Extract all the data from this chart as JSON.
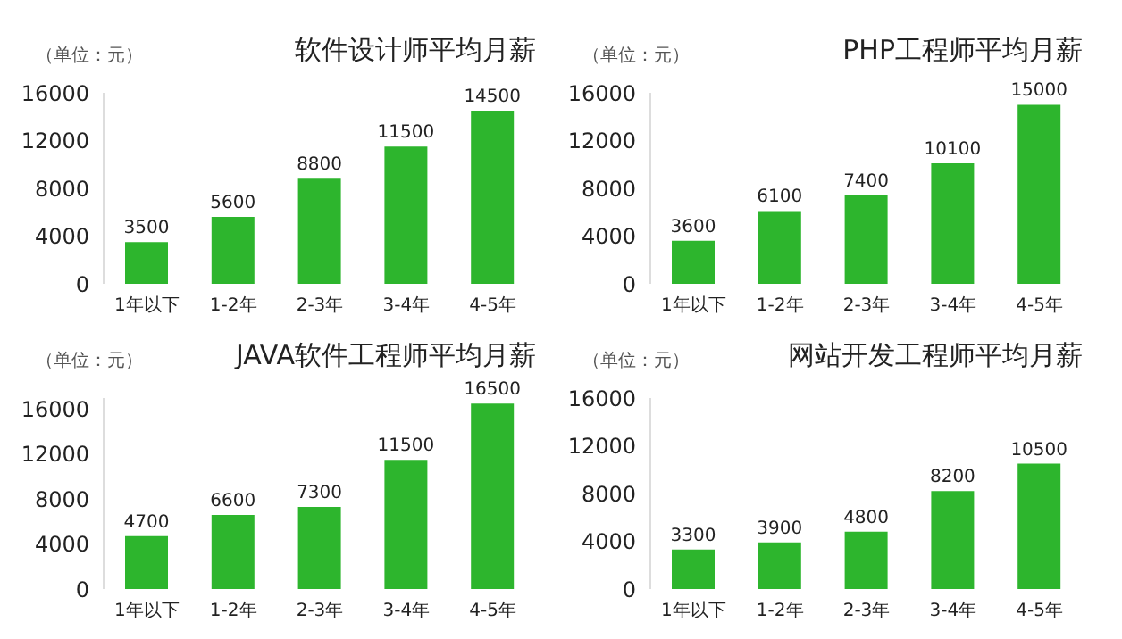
{
  "chart_data": [
    {
      "type": "bar",
      "title": "软件设计师平均月薪",
      "annotations": [
        "（单位：元）"
      ],
      "categories": [
        "1年以下",
        "1-2年",
        "2-3年",
        "3-4年",
        "4-5年"
      ],
      "values": [
        3500,
        5600,
        8800,
        11500,
        14500
      ],
      "color": "#2db52d",
      "ylim": [
        0,
        16000
      ],
      "yticks": [
        0,
        4000,
        8000,
        12000,
        16000
      ],
      "data_labels": true
    },
    {
      "type": "bar",
      "title": "PHP工程师平均月薪",
      "annotations": [
        "（单位：元）"
      ],
      "categories": [
        "1年以下",
        "1-2年",
        "2-3年",
        "3-4年",
        "4-5年"
      ],
      "values": [
        3600,
        6100,
        7400,
        10100,
        15000
      ],
      "color": "#2db52d",
      "ylim": [
        0,
        16000
      ],
      "yticks": [
        0,
        4000,
        8000,
        12000,
        16000
      ],
      "data_labels": true
    },
    {
      "type": "bar",
      "title": "JAVA软件工程师平均月薪",
      "annotations": [
        "（单位：元）"
      ],
      "categories": [
        "1年以下",
        "1-2年",
        "2-3年",
        "3-4年",
        "4-5年"
      ],
      "values": [
        4700,
        6600,
        7300,
        11500,
        16500
      ],
      "color": "#2db52d",
      "ylim": [
        0,
        17000
      ],
      "yticks": [
        0,
        4000,
        8000,
        12000,
        16000
      ],
      "data_labels": true
    },
    {
      "type": "bar",
      "title": "网站开发工程师平均月薪",
      "annotations": [
        "（单位：元）"
      ],
      "categories": [
        "1年以下",
        "1-2年",
        "2-3年",
        "3-4年",
        "4-5年"
      ],
      "values": [
        3300,
        3900,
        4800,
        8200,
        10500
      ],
      "color": "#2db52d",
      "ylim": [
        0,
        16000
      ],
      "yticks": [
        0,
        4000,
        8000,
        12000,
        16000
      ],
      "data_labels": true
    }
  ]
}
